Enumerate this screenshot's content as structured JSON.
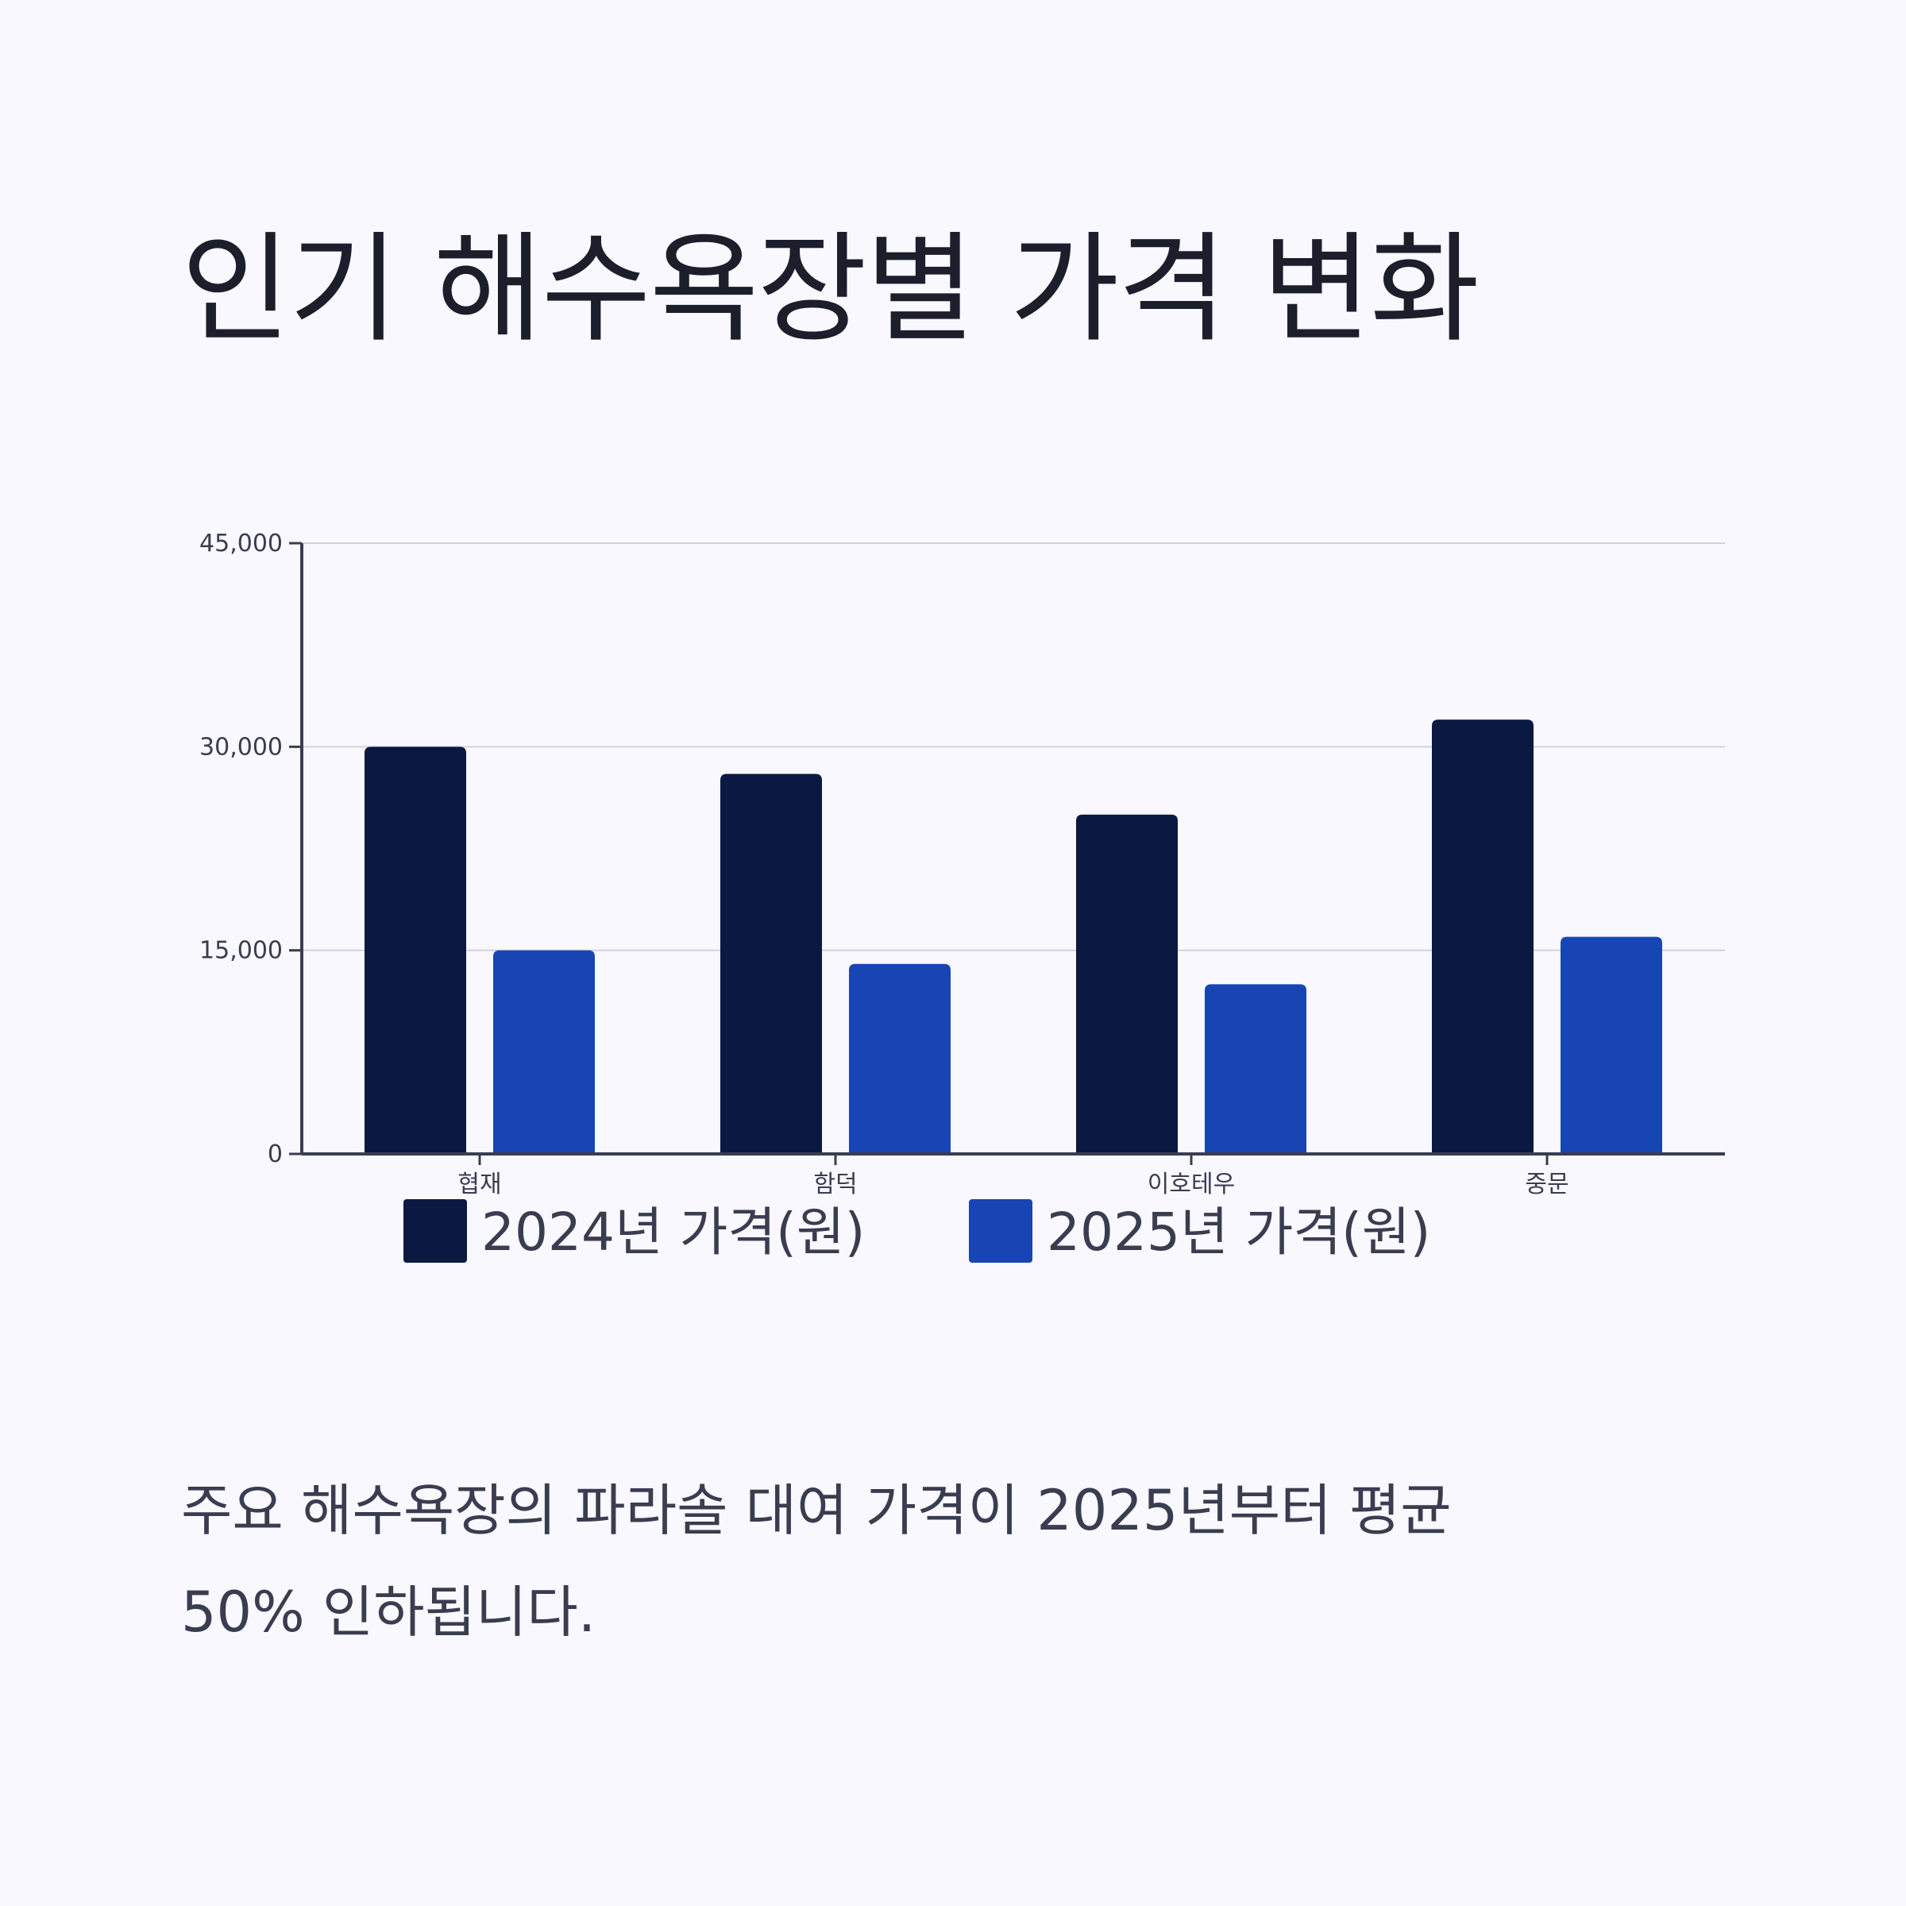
{
  "page": {
    "title": "인기 해수욕장별 가격 변화",
    "description": [
      "주요 해수욕장의 파라솔 대여 가격이 2025년부터 평균",
      "50% 인하됩니다."
    ]
  },
  "chart_data": {
    "type": "bar",
    "title": "",
    "xlabel": "",
    "ylabel": "",
    "categories": [
      "협재",
      "함덕",
      "이호테우",
      "중문"
    ],
    "series": [
      {
        "name": "2024년 가격(원)",
        "values": [
          30000,
          28000,
          25000,
          32000
        ],
        "color": "#0a1942"
      },
      {
        "name": "2025년 가격(원)",
        "values": [
          15000,
          14000,
          12500,
          16000
        ],
        "color": "#1746b4"
      }
    ],
    "ylim": [
      0,
      45000
    ],
    "yticks": [
      0,
      15000,
      30000,
      45000
    ],
    "ytick_labels": [
      "0",
      "15,000",
      "30,000",
      "45,000"
    ],
    "grid": true,
    "legend_position": "bottom"
  }
}
